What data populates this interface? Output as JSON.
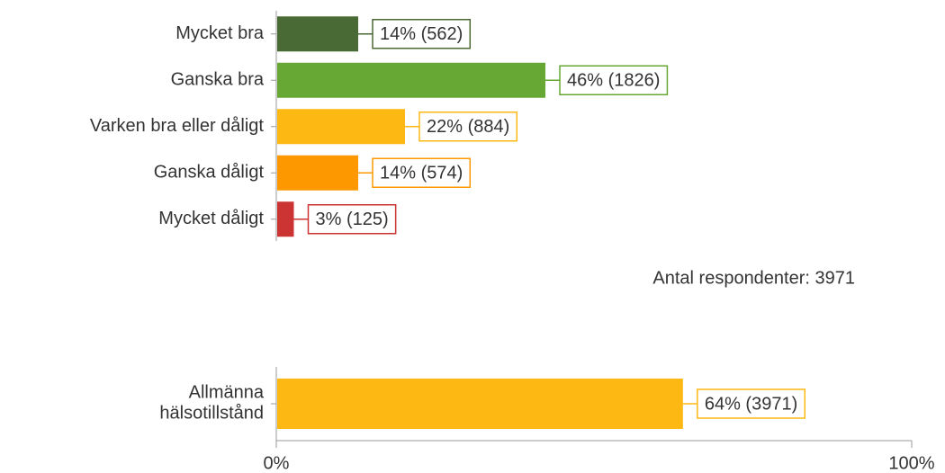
{
  "chart_data": [
    {
      "type": "bar",
      "categories": [
        "Mycket bra",
        "Ganska bra",
        "Varken bra eller dåligt",
        "Ganska dåligt",
        "Mycket dåligt"
      ],
      "values": [
        14,
        46,
        22,
        14,
        3
      ],
      "value_labels": [
        "14% (562)",
        "46% (1826)",
        "22% (884)",
        "14% (574)",
        "3% (125)"
      ],
      "colors": [
        "#4a6a35",
        "#67a834",
        "#fdb813",
        "#fd9800",
        "#cc3333"
      ],
      "xlim": [
        0,
        100
      ],
      "annotation": "Antal respondenter: 3971"
    },
    {
      "type": "bar",
      "categories": [
        "Allmänna hälsotillstånd"
      ],
      "values": [
        64
      ],
      "value_labels": [
        "64% (3971)"
      ],
      "colors": [
        "#fdb813"
      ],
      "xlim": [
        0,
        100
      ],
      "xticks": [
        {
          "value": 0,
          "label": "0%"
        },
        {
          "value": 100,
          "label": "100%"
        }
      ]
    }
  ]
}
